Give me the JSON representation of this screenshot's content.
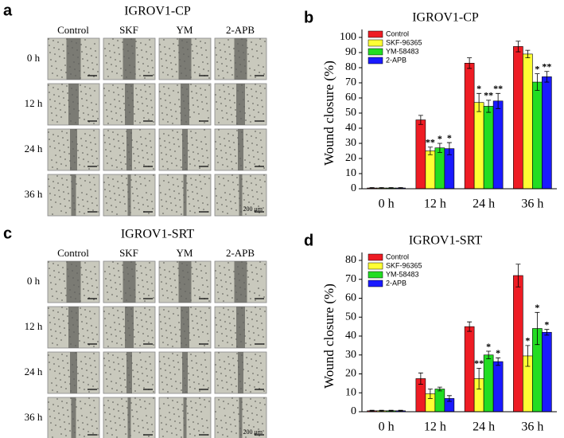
{
  "panel_a": {
    "label": "a",
    "title": "IGROV1-CP",
    "columns": [
      "Control",
      "SKF",
      "YM",
      "2-APB"
    ],
    "rows": [
      "0 h",
      "12 h",
      "24 h",
      "36 h"
    ],
    "scale_bar": "200 μm"
  },
  "panel_c": {
    "label": "c",
    "title": "IGROV1-SRT",
    "columns": [
      "Control",
      "SKF",
      "YM",
      "2-APB"
    ],
    "rows": [
      "0 h",
      "12 h",
      "24 h",
      "36 h"
    ],
    "scale_bar": "200 μm"
  },
  "chart_data": [
    {
      "type": "bar",
      "panel_label": "b",
      "title": "IGROV1-CP",
      "y_label": "Wound closure (%)",
      "categories": [
        "0 h",
        "12 h",
        "24 h",
        "36 h"
      ],
      "ylim": [
        0,
        100
      ],
      "yticks": [
        0,
        10,
        20,
        30,
        40,
        50,
        60,
        70,
        80,
        90,
        100
      ],
      "legend": "upper-left",
      "series": [
        {
          "name": "Control",
          "color": "#ee1c24",
          "values": [
            0.5,
            45.5,
            83,
            94
          ],
          "errors": [
            0.3,
            3,
            3.5,
            3.5
          ],
          "annotations": [
            null,
            null,
            null,
            null
          ]
        },
        {
          "name": "SKF-96365",
          "color": "#ffff33",
          "values": [
            0.5,
            25,
            57,
            89
          ],
          "errors": [
            0.3,
            2.5,
            6,
            2.5
          ],
          "annotations": [
            null,
            "**",
            "*",
            null
          ]
        },
        {
          "name": "YM-58483",
          "color": "#22dd22",
          "values": [
            0.5,
            27,
            54.5,
            70.5
          ],
          "errors": [
            0.3,
            3,
            4,
            5.5
          ],
          "annotations": [
            null,
            "*",
            "**",
            "*"
          ]
        },
        {
          "name": "2-APB",
          "color": "#1a1aff",
          "values": [
            0.5,
            26.5,
            58,
            74
          ],
          "errors": [
            0.3,
            4,
            5,
            3.5
          ],
          "annotations": [
            null,
            "*",
            "**",
            "**"
          ]
        }
      ]
    },
    {
      "type": "bar",
      "panel_label": "d",
      "title": "IGROV1-SRT",
      "y_label": "Wound closure (%)",
      "categories": [
        "0 h",
        "12 h",
        "24 h",
        "36 h"
      ],
      "ylim": [
        0,
        80
      ],
      "yticks": [
        0,
        10,
        20,
        30,
        40,
        50,
        60,
        70,
        80
      ],
      "legend": "upper-left",
      "series": [
        {
          "name": "Control",
          "color": "#ee1c24",
          "values": [
            0.5,
            17.5,
            45,
            72
          ],
          "errors": [
            0.3,
            3,
            2.5,
            6
          ],
          "annotations": [
            null,
            null,
            null,
            null
          ]
        },
        {
          "name": "SKF-96365",
          "color": "#ffff33",
          "values": [
            0.5,
            9.5,
            17.5,
            29.5
          ],
          "errors": [
            0.3,
            2.5,
            5.5,
            5.5
          ],
          "annotations": [
            null,
            null,
            "**",
            "*"
          ]
        },
        {
          "name": "YM-58483",
          "color": "#22dd22",
          "values": [
            0.5,
            12,
            30,
            44
          ],
          "errors": [
            0.3,
            1,
            2,
            8.5
          ],
          "annotations": [
            null,
            null,
            "*",
            "*"
          ]
        },
        {
          "name": "2-APB",
          "color": "#1a1aff",
          "values": [
            0.5,
            7,
            26.5,
            42
          ],
          "errors": [
            0.3,
            1.5,
            2,
            1.5
          ],
          "annotations": [
            null,
            null,
            "*",
            "*"
          ]
        }
      ]
    }
  ]
}
